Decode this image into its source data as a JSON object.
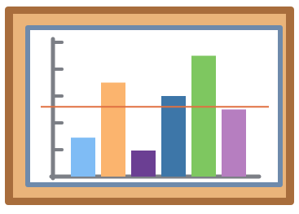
{
  "chart_data": {
    "type": "bar",
    "categories": [
      null,
      null,
      null,
      null,
      null,
      null
    ],
    "values": [
      1.45,
      3.5,
      0.97,
      3.0,
      4.5,
      2.5
    ],
    "colors": [
      "#7fbcf5",
      "#fbb46e",
      "#6b3f93",
      "#3d76a8",
      "#7ec760",
      "#b67ec0"
    ],
    "ylim": [
      0,
      5
    ],
    "yticks": [
      1,
      2,
      3,
      4,
      5
    ],
    "grid": false,
    "reference_line": {
      "value": 2.6,
      "color": "#e07040"
    }
  }
}
